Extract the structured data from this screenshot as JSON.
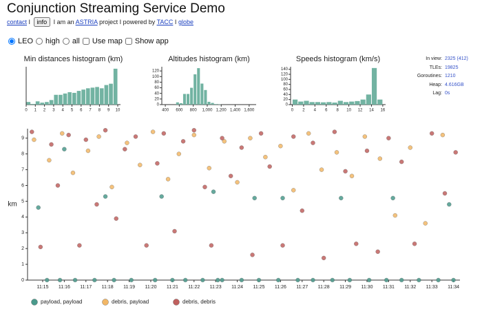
{
  "header": {
    "title": "Conjunction Streaming Service Demo",
    "nav": [
      "contact",
      "I",
      "info",
      "I am an",
      "ASTRIA",
      "project I powered by",
      "TACC",
      "I",
      "globe"
    ]
  },
  "controls": {
    "radios": [
      "LEO",
      "high",
      "all"
    ],
    "checkboxes": [
      "Use map",
      "Show app"
    ]
  },
  "stats": [
    {
      "label": "In view:",
      "value": "2325 (412)"
    },
    {
      "label": "TLEs:",
      "value": "19825"
    },
    {
      "label": "Goroutines:",
      "value": "1210"
    },
    {
      "label": "Heap:",
      "value": "4.616GB"
    },
    {
      "label": "Lag:",
      "value": "0s"
    }
  ],
  "chart_data": [
    {
      "type": "histogram",
      "title": "Min distances histogram (km)",
      "color": "#72b3a2",
      "bins": [
        0,
        0.5,
        1,
        1.5,
        2,
        2.5,
        3,
        3.5,
        4,
        4.5,
        5,
        5.5,
        6,
        6.5,
        7,
        7.5,
        8,
        8.5,
        9,
        9.5,
        10
      ],
      "values": [
        4,
        1,
        5,
        3,
        4,
        7,
        15,
        15,
        17,
        19,
        18,
        21,
        23,
        25,
        26,
        27,
        25,
        30,
        32,
        55
      ],
      "xlim": [
        0,
        10.3
      ],
      "ylim": [
        0,
        58
      ],
      "xticks": [
        0,
        1,
        2,
        3,
        4,
        5,
        6,
        7,
        8,
        9,
        10
      ]
    },
    {
      "type": "histogram",
      "title": "Altitudes histogram (km)",
      "color": "#72b3a2",
      "bins": [
        400,
        450,
        500,
        550,
        600,
        650,
        700,
        750,
        800,
        850,
        900,
        950,
        1000,
        1050,
        1100,
        1150,
        1200,
        1250,
        1300,
        1350,
        1400,
        1450,
        1500,
        1550,
        1600,
        1650,
        1700
      ],
      "values": [
        0,
        0,
        0,
        8,
        5,
        38,
        38,
        60,
        108,
        130,
        75,
        52,
        10,
        6,
        2,
        1,
        0,
        0,
        0,
        0,
        0,
        0,
        0,
        0,
        0,
        0
      ],
      "xlim": [
        350,
        1700
      ],
      "ylim": [
        0,
        135
      ],
      "xticks": [
        400,
        600,
        800,
        {
          "value": 1000,
          "label": "1,000"
        },
        {
          "value": 1200,
          "label": "1,200"
        },
        {
          "value": 1400,
          "label": "1,400"
        },
        {
          "value": 1600,
          "label": "1,600"
        }
      ],
      "yticks": [
        0,
        20,
        40,
        60,
        80,
        100,
        120
      ]
    },
    {
      "type": "histogram",
      "title": "Speeds histogram (km/s)",
      "color": "#72b3a2",
      "bins": [
        0,
        1,
        2,
        3,
        4,
        5,
        6,
        7,
        8,
        9,
        10,
        11,
        12,
        13,
        14,
        15,
        16
      ],
      "values": [
        20,
        12,
        15,
        10,
        10,
        9,
        10,
        8,
        15,
        10,
        12,
        14,
        20,
        40,
        145,
        20
      ],
      "xlim": [
        -0.3,
        16.5
      ],
      "ylim": [
        0,
        150
      ],
      "xticks": [
        0,
        2,
        4,
        6,
        8,
        10,
        12,
        14,
        16
      ],
      "yticks": [
        0,
        20,
        40,
        60,
        80,
        100,
        120,
        140
      ]
    },
    {
      "type": "scatter",
      "y_label": "km",
      "xlim": [
        14.3,
        34.3
      ],
      "ylim": [
        0,
        9.6
      ],
      "yticks": [
        0,
        1,
        2,
        3,
        4,
        5,
        6,
        7,
        8,
        9
      ],
      "xticks": [
        {
          "value": 15,
          "label": "11:15"
        },
        {
          "value": 16,
          "label": "11:16"
        },
        {
          "value": 17,
          "label": "11:17"
        },
        {
          "value": 18,
          "label": "11:18"
        },
        {
          "value": 19,
          "label": "11:19"
        },
        {
          "value": 20,
          "label": "11:20"
        },
        {
          "value": 21,
          "label": "11:21"
        },
        {
          "value": 22,
          "label": "11:22"
        },
        {
          "value": 23,
          "label": "11:23"
        },
        {
          "value": 24,
          "label": "11:24"
        },
        {
          "value": 25,
          "label": "11:25"
        },
        {
          "value": 26,
          "label": "11:26"
        },
        {
          "value": 27,
          "label": "11:27"
        },
        {
          "value": 28,
          "label": "11:28"
        },
        {
          "value": 29,
          "label": "11:29"
        },
        {
          "value": 30,
          "label": "11:30"
        },
        {
          "value": 31,
          "label": "11:31"
        },
        {
          "value": 32,
          "label": "11:32"
        },
        {
          "value": 33,
          "label": "11:33"
        },
        {
          "value": 34,
          "label": "11:34"
        }
      ],
      "legend": "bottom",
      "series": [
        {
          "name": "payload, payload",
          "color": "#4a9a8c",
          "x": [
            15.2,
            15.8,
            16.5,
            17.4,
            18.3,
            19.1,
            20.2,
            21.0,
            21.6,
            22.4,
            23.1,
            23.3,
            24.2,
            25.0,
            25.9,
            26.8,
            27.5,
            28.4,
            29.2,
            30.1,
            30.9,
            31.6,
            32.4,
            33.3,
            34.0,
            14.8,
            16.0,
            17.9,
            20.5,
            22.9,
            24.8,
            26.1,
            28.8,
            31.2,
            33.8
          ],
          "values": [
            0,
            0,
            0,
            0,
            0,
            0,
            0,
            0,
            0,
            0,
            0,
            0,
            0,
            0,
            0,
            0,
            0,
            0,
            0,
            0,
            0,
            0,
            0,
            0,
            0,
            4.6,
            8.3,
            5.3,
            5.3,
            5.6,
            5.2,
            5.2,
            5.2,
            5.2,
            4.8
          ]
        },
        {
          "name": "debris, payload",
          "color": "#f2b766",
          "x": [
            14.6,
            15.3,
            15.9,
            16.4,
            17.1,
            17.6,
            18.2,
            18.9,
            19.5,
            20.1,
            20.8,
            21.3,
            22.0,
            22.7,
            23.4,
            24.0,
            24.6,
            25.3,
            26.0,
            26.6,
            27.3,
            27.9,
            28.6,
            29.3,
            29.9,
            30.6,
            31.3,
            32.0,
            32.7,
            33.5
          ],
          "values": [
            8.9,
            7.6,
            9.3,
            6.8,
            8.2,
            9.1,
            5.9,
            8.7,
            7.3,
            9.4,
            6.4,
            8.0,
            9.2,
            7.1,
            8.8,
            6.2,
            9.0,
            7.8,
            8.5,
            5.7,
            9.3,
            7.0,
            8.1,
            6.6,
            9.1,
            7.7,
            4.1,
            8.4,
            3.6,
            9.2
          ]
        },
        {
          "name": "debris, debris",
          "color": "#c0605e",
          "x": [
            14.5,
            14.9,
            15.4,
            15.7,
            16.2,
            16.7,
            17.0,
            17.5,
            17.9,
            18.4,
            18.8,
            19.3,
            19.8,
            20.3,
            20.6,
            21.1,
            21.5,
            22.0,
            22.5,
            22.8,
            23.3,
            23.7,
            24.2,
            24.7,
            25.1,
            25.5,
            26.1,
            26.6,
            27.0,
            27.5,
            28.0,
            28.5,
            29.0,
            29.5,
            30.0,
            30.5,
            31.0,
            31.6,
            32.2,
            33.0,
            33.6,
            34.1
          ],
          "values": [
            9.4,
            2.1,
            8.6,
            6.0,
            9.2,
            2.2,
            8.9,
            4.8,
            9.5,
            3.9,
            8.3,
            9.1,
            2.2,
            7.4,
            9.3,
            3.1,
            8.8,
            9.5,
            5.9,
            2.2,
            9.0,
            6.6,
            8.4,
            1.6,
            9.3,
            7.2,
            2.2,
            9.1,
            4.4,
            8.7,
            1.4,
            9.4,
            6.9,
            2.3,
            8.2,
            1.8,
            9.0,
            7.5,
            2.3,
            9.3,
            5.5,
            8.1
          ]
        }
      ]
    }
  ]
}
